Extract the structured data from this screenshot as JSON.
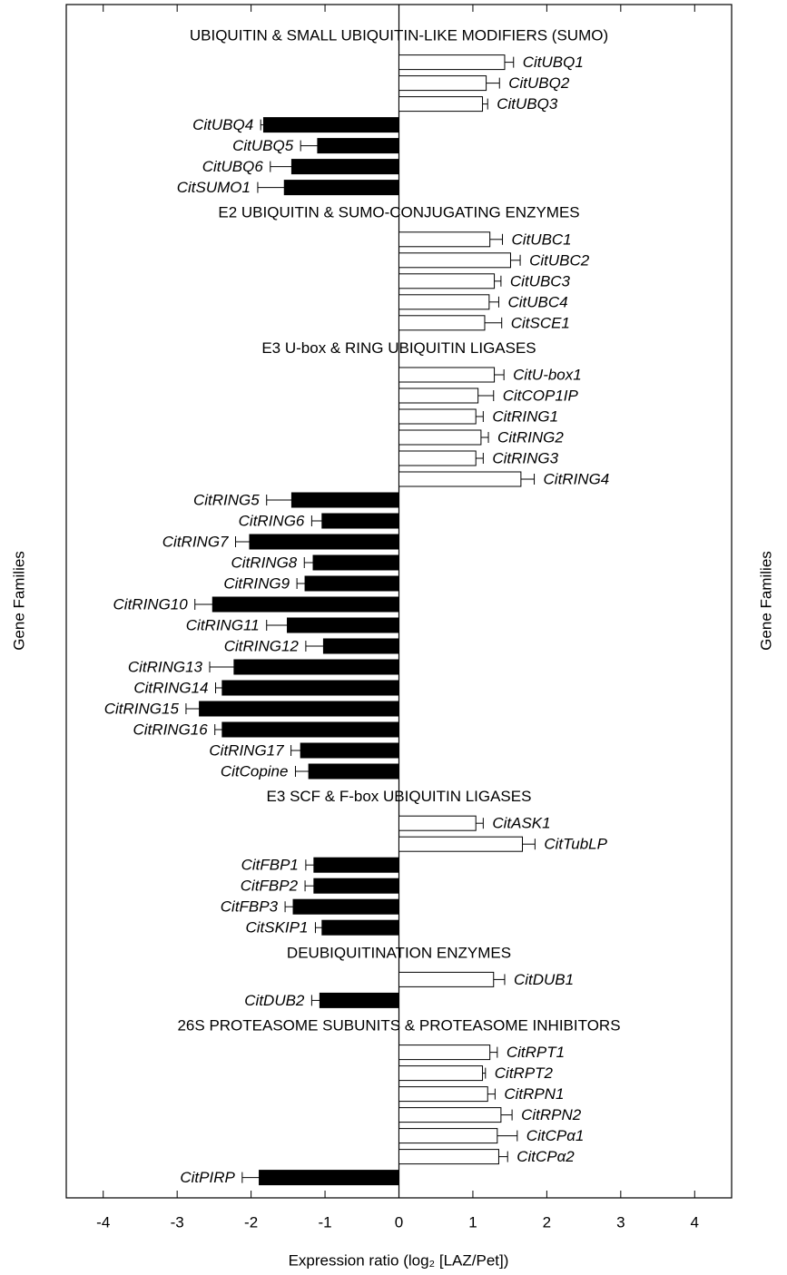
{
  "chart_data": {
    "type": "bar",
    "x_label": "Expression ratio (log₂ [LAZ/Pet])",
    "y_label": "Gene Families",
    "xlim": [
      -4.5,
      4.5
    ],
    "xticks": [
      -4,
      -3,
      -2,
      -1,
      0,
      1,
      2,
      3,
      4
    ],
    "positive_color": "#ffffff",
    "negative_color": "#000000",
    "groups": [
      {
        "title": "UBIQUITIN & SMALL UBIQUITIN-LIKE MODIFIERS (SUMO)",
        "categories": [
          "CitUBQ1",
          "CitUBQ2",
          "CitUBQ3",
          "CitUBQ4",
          "CitUBQ5",
          "CitUBQ6",
          "CitSUMO1"
        ],
        "values": [
          1.43,
          1.18,
          1.13,
          -1.83,
          -1.1,
          -1.45,
          -1.55
        ],
        "errors": [
          0.12,
          0.18,
          0.07,
          0.04,
          0.23,
          0.29,
          0.36
        ]
      },
      {
        "title": "E2 UBIQUITIN & SUMO-CONJUGATING ENZYMES",
        "categories": [
          "CitUBC1",
          "CitUBC2",
          "CitUBC3",
          "CitUBC4",
          "CitSCE1"
        ],
        "values": [
          1.23,
          1.51,
          1.29,
          1.22,
          1.16
        ],
        "errors": [
          0.17,
          0.13,
          0.09,
          0.13,
          0.23
        ]
      },
      {
        "title": "E3 U-box & RING UBIQUITIN LIGASES",
        "categories": [
          "CitU-box1",
          "CitCOP1IP",
          "CitRING1",
          "CitRING2",
          "CitRING3",
          "CitRING4",
          "CitRING5",
          "CitRING6",
          "CitRING7",
          "CitRING8",
          "CitRING9",
          "CitRING10",
          "CitRING11",
          "CitRING12",
          "CitRING13",
          "CitRING14",
          "CitRING15",
          "CitRING16",
          "CitRING17",
          "CitCopine"
        ],
        "values": [
          1.29,
          1.07,
          1.04,
          1.11,
          1.04,
          1.65,
          -1.45,
          -1.04,
          -2.02,
          -1.16,
          -1.27,
          -2.52,
          -1.51,
          -1.02,
          -2.23,
          -2.39,
          -2.7,
          -2.39,
          -1.33,
          -1.22
        ],
        "errors": [
          0.13,
          0.21,
          0.1,
          0.1,
          0.1,
          0.18,
          0.34,
          0.14,
          0.19,
          0.12,
          0.11,
          0.24,
          0.28,
          0.24,
          0.33,
          0.09,
          0.18,
          0.1,
          0.13,
          0.18
        ]
      },
      {
        "title": "E3 SCF & F-box UBIQUITIN LIGASES",
        "categories": [
          "CitASK1",
          "CitTubLP",
          "CitFBP1",
          "CitFBP2",
          "CitFBP3",
          "CitSKIP1"
        ],
        "values": [
          1.04,
          1.67,
          -1.15,
          -1.15,
          -1.43,
          -1.04
        ],
        "errors": [
          0.1,
          0.17,
          0.11,
          0.12,
          0.11,
          0.09
        ]
      },
      {
        "title": "DEUBIQUITINATION ENZYMES",
        "categories": [
          "CitDUB1",
          "CitDUB2"
        ],
        "values": [
          1.28,
          -1.07
        ],
        "errors": [
          0.15,
          0.11
        ]
      },
      {
        "title": "26S PROTEASOME SUBUNITS & PROTEASOME INHIBITORS",
        "categories": [
          "CitRPT1",
          "CitRPT2",
          "CitRPN1",
          "CitRPN2",
          "CitCPα1",
          "CitCPα2",
          "CitPIRP"
        ],
        "values": [
          1.23,
          1.13,
          1.2,
          1.38,
          1.33,
          1.35,
          -1.89
        ],
        "errors": [
          0.1,
          0.04,
          0.1,
          0.15,
          0.27,
          0.12,
          0.23
        ]
      }
    ]
  }
}
